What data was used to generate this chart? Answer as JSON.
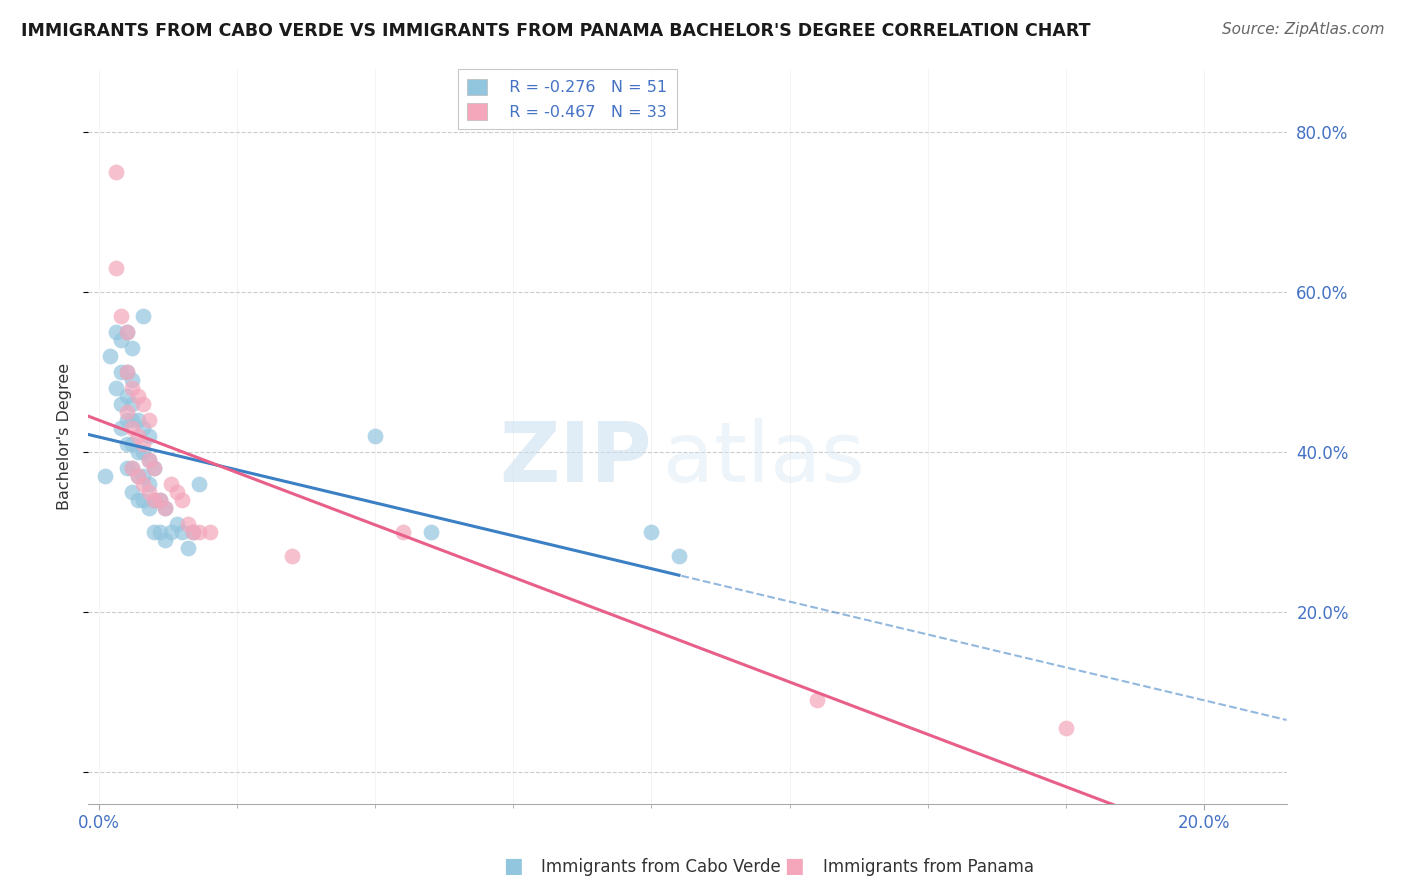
{
  "title": "IMMIGRANTS FROM CABO VERDE VS IMMIGRANTS FROM PANAMA BACHELOR'S DEGREE CORRELATION CHART",
  "source": "Source: ZipAtlas.com",
  "ylabel": "Bachelor's Degree",
  "legend_blue_R": "R = -0.276",
  "legend_blue_N": "N = 51",
  "legend_pink_R": "R = -0.467",
  "legend_pink_N": "N = 33",
  "legend_label_blue": "Immigrants from Cabo Verde",
  "legend_label_pink": "Immigrants from Panama",
  "ytick_positions": [
    0.0,
    0.2,
    0.4,
    0.6,
    0.8
  ],
  "ytick_labels": [
    "",
    "20.0%",
    "40.0%",
    "60.0%",
    "80.0%"
  ],
  "xtick_positions": [
    0.0,
    0.2
  ],
  "xtick_labels": [
    "0.0%",
    "20.0%"
  ],
  "xlim": [
    -0.002,
    0.215
  ],
  "ylim": [
    -0.04,
    0.88
  ],
  "blue_color": "#92c5de",
  "pink_color": "#f4a6bb",
  "line_blue": "#3b7fc4",
  "line_pink": "#e8608a",
  "watermark_zip": "ZIP",
  "watermark_atlas": "atlas",
  "cabo_verde_x": [
    0.001,
    0.002,
    0.003,
    0.003,
    0.004,
    0.004,
    0.004,
    0.004,
    0.005,
    0.005,
    0.005,
    0.005,
    0.005,
    0.005,
    0.006,
    0.006,
    0.006,
    0.006,
    0.006,
    0.006,
    0.006,
    0.007,
    0.007,
    0.007,
    0.007,
    0.008,
    0.008,
    0.008,
    0.008,
    0.008,
    0.009,
    0.009,
    0.009,
    0.009,
    0.01,
    0.01,
    0.01,
    0.011,
    0.011,
    0.012,
    0.012,
    0.013,
    0.014,
    0.015,
    0.016,
    0.017,
    0.018,
    0.05,
    0.06,
    0.1,
    0.105
  ],
  "cabo_verde_y": [
    0.37,
    0.52,
    0.48,
    0.55,
    0.43,
    0.46,
    0.5,
    0.54,
    0.38,
    0.41,
    0.44,
    0.47,
    0.5,
    0.55,
    0.35,
    0.38,
    0.41,
    0.44,
    0.46,
    0.49,
    0.53,
    0.34,
    0.37,
    0.4,
    0.44,
    0.34,
    0.37,
    0.4,
    0.43,
    0.57,
    0.33,
    0.36,
    0.39,
    0.42,
    0.3,
    0.34,
    0.38,
    0.3,
    0.34,
    0.29,
    0.33,
    0.3,
    0.31,
    0.3,
    0.28,
    0.3,
    0.36,
    0.42,
    0.3,
    0.3,
    0.27
  ],
  "panama_x": [
    0.003,
    0.003,
    0.004,
    0.005,
    0.005,
    0.005,
    0.006,
    0.006,
    0.006,
    0.007,
    0.007,
    0.007,
    0.008,
    0.008,
    0.008,
    0.009,
    0.009,
    0.009,
    0.01,
    0.01,
    0.011,
    0.012,
    0.013,
    0.014,
    0.015,
    0.016,
    0.017,
    0.018,
    0.02,
    0.035,
    0.055,
    0.13,
    0.175
  ],
  "panama_y": [
    0.75,
    0.63,
    0.57,
    0.45,
    0.5,
    0.55,
    0.38,
    0.43,
    0.48,
    0.37,
    0.42,
    0.47,
    0.36,
    0.41,
    0.46,
    0.35,
    0.39,
    0.44,
    0.34,
    0.38,
    0.34,
    0.33,
    0.36,
    0.35,
    0.34,
    0.31,
    0.3,
    0.3,
    0.3,
    0.27,
    0.3,
    0.09,
    0.055
  ]
}
